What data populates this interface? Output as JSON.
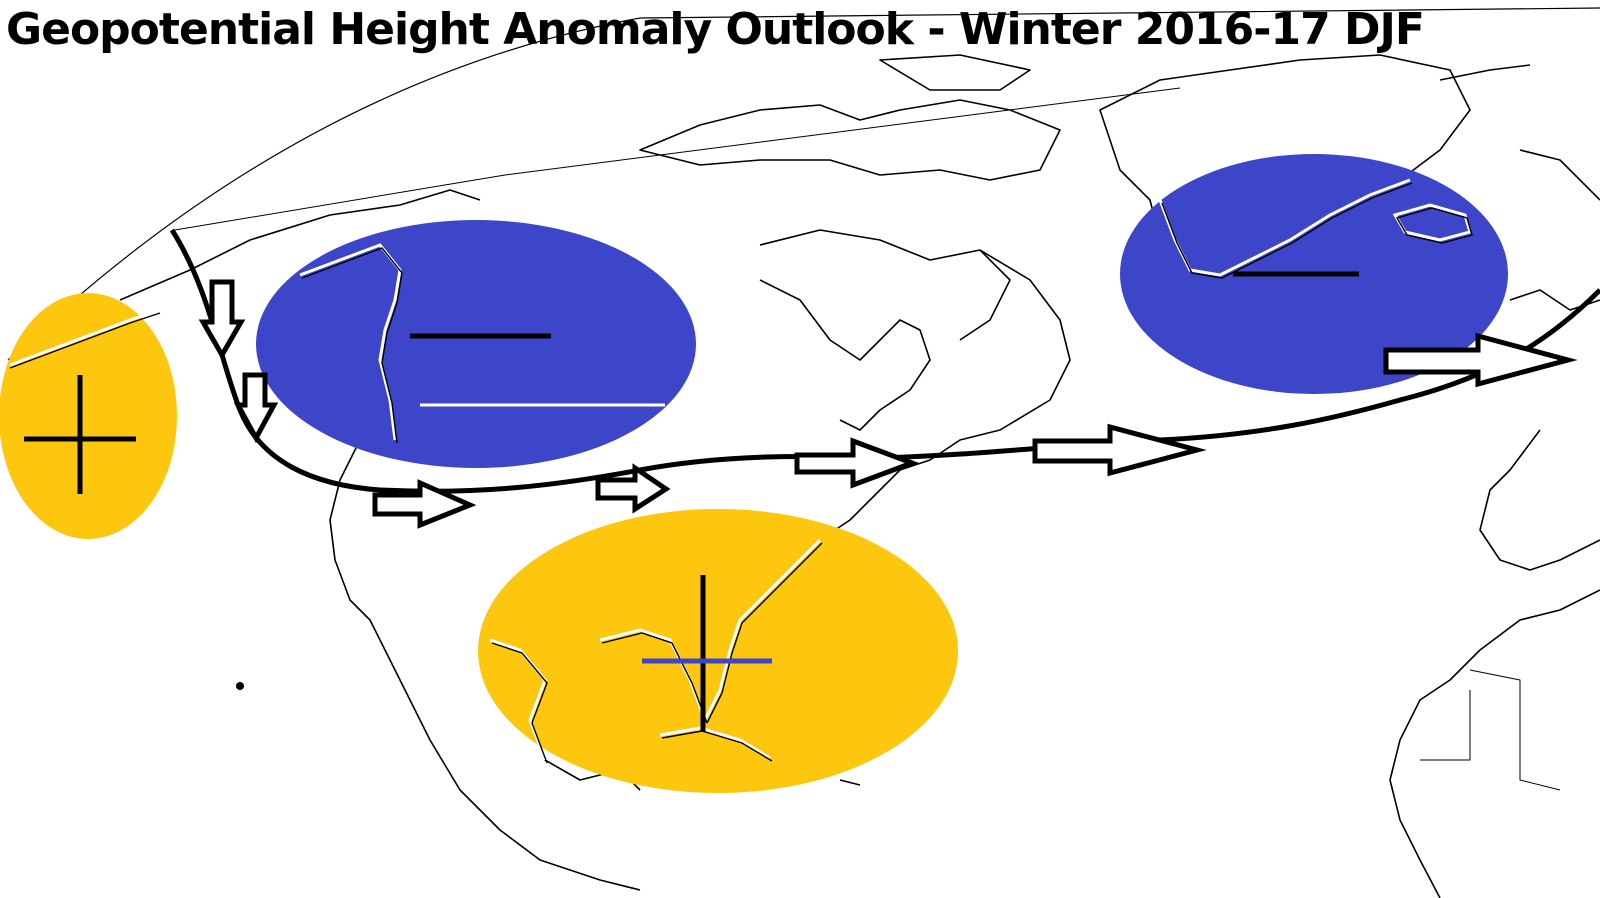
{
  "title": "Geopotential Height Anomaly Outlook - Winter 2016-17 DJF",
  "colors": {
    "positive_anomaly": "#FDC70F",
    "negative_anomaly": "#3D46C9",
    "outline": "#000000",
    "background": "#FFFFFF"
  },
  "anomalies": [
    {
      "id": "north-pacific-ridge",
      "sign": "+",
      "color": "positive_anomaly"
    },
    {
      "id": "western-canada-trough",
      "sign": "-",
      "color": "negative_anomaly"
    },
    {
      "id": "greenland-trough",
      "sign": "-",
      "color": "negative_anomaly"
    },
    {
      "id": "southeast-us-ridge",
      "sign": "+",
      "color": "positive_anomaly"
    }
  ],
  "jet_stream": {
    "label": "jet stream flow",
    "direction": "west-to-east"
  }
}
